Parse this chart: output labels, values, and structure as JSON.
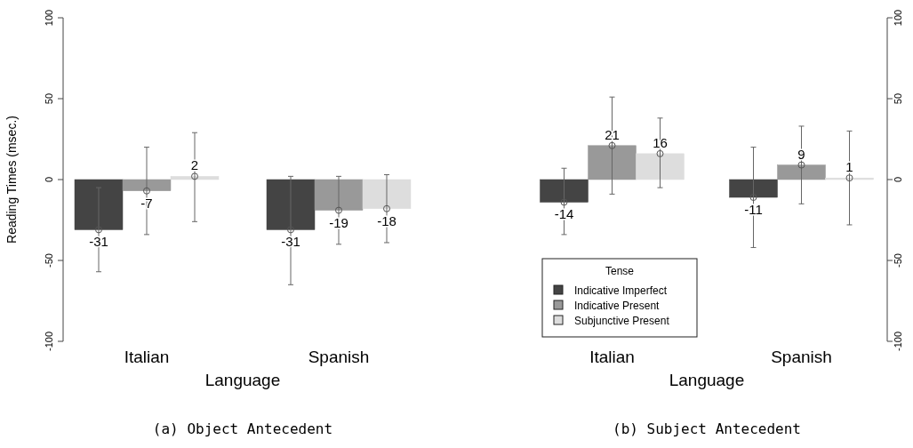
{
  "chart_data": [
    {
      "type": "bar",
      "title": "(a) Object Antecedent",
      "xlabel": "Language",
      "ylabel": "Reading Times (msec.)",
      "categories": [
        "Italian",
        "Spanish"
      ],
      "ylim": [
        -100,
        100
      ],
      "yticks": [
        -100,
        -50,
        0,
        50,
        100
      ],
      "legend": false,
      "data_labels": true,
      "marker": "circle",
      "series": [
        {
          "color": "#444444",
          "values": [
            -31,
            -31
          ],
          "errors": [
            [
              -57,
              -5
            ],
            [
              -65,
              2
            ]
          ]
        },
        {
          "color": "#999999",
          "values": [
            -7,
            -19
          ],
          "errors": [
            [
              -34,
              20
            ],
            [
              -40,
              2
            ]
          ]
        },
        {
          "color": "#dddddd",
          "values": [
            2,
            -18
          ],
          "errors": [
            [
              -26,
              29
            ],
            [
              -39,
              3
            ]
          ]
        }
      ]
    },
    {
      "type": "bar",
      "title": "(b) Subject Antecedent",
      "xlabel": "Language",
      "legend_title": "Tense",
      "categories": [
        "Italian",
        "Spanish"
      ],
      "ylim": [
        -100,
        100
      ],
      "yticks": [
        -100,
        -50,
        0,
        50,
        100
      ],
      "legend": "bottom left",
      "data_labels": true,
      "marker": "circle",
      "series": [
        {
          "name": "Indicative Imperfect",
          "color": "#444444",
          "values": [
            -14,
            -11
          ],
          "errors": [
            [
              -34,
              7
            ],
            [
              -42,
              20
            ]
          ]
        },
        {
          "name": "Indicative Present",
          "color": "#999999",
          "values": [
            21,
            9
          ],
          "errors": [
            [
              -9,
              51
            ],
            [
              -15,
              33
            ]
          ]
        },
        {
          "name": "Subjunctive Present",
          "color": "#dddddd",
          "values": [
            16,
            1
          ],
          "errors": [
            [
              -5,
              38
            ],
            [
              -28,
              30
            ]
          ]
        }
      ]
    }
  ]
}
